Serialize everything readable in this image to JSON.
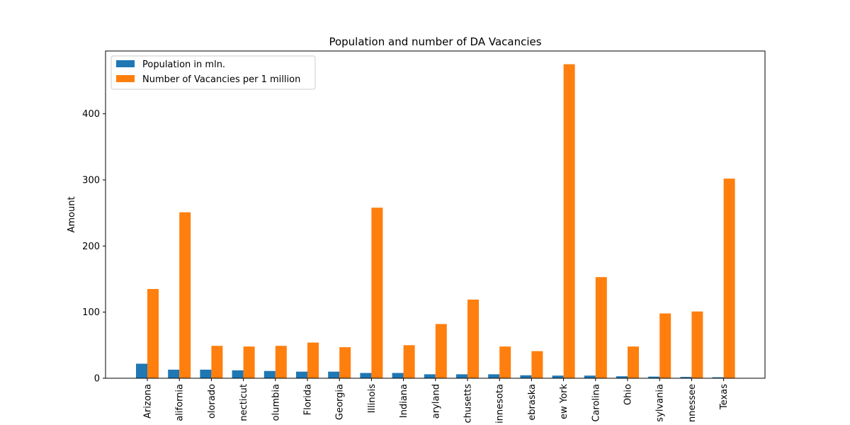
{
  "chart_data": {
    "type": "bar",
    "title": "Population and number of DA Vacancies",
    "xlabel": "",
    "ylabel": "Amount",
    "ylim": [
      0,
      495
    ],
    "yticks": [
      0,
      100,
      200,
      300,
      400
    ],
    "categories": [
      "Arizona",
      "California",
      "Colorado",
      "Connecticut",
      "Columbia",
      "Florida",
      "Georgia",
      "Illinois",
      "Indiana",
      "Maryland",
      "Massachusetts",
      "Minnesota",
      "Nebraska",
      "New York",
      "North Carolina",
      "Ohio",
      "Pennsylvania",
      "Tennessee",
      "Texas"
    ],
    "tick_labels_visible": [
      "Arizona",
      "alifornia",
      "olorado",
      "necticut",
      "olumbia",
      "Florida",
      "Georgia",
      "Illinois",
      "Indiana",
      "aryland",
      "chusetts",
      "innesota",
      "ebraska",
      "ew York",
      "Carolina",
      "Ohio",
      "sylvania",
      "nnessee",
      "Texas"
    ],
    "series": [
      {
        "name": "Population in mln.",
        "color": "#1f77b4",
        "values": [
          22.0,
          13.0,
          13.0,
          12.0,
          11.0,
          10.0,
          10.0,
          8.0,
          8.0,
          6.0,
          6.0,
          6.0,
          4.5,
          4.0,
          4.0,
          3.0,
          2.5,
          2.0,
          1.5
        ]
      },
      {
        "name": "Number of Vacancies per 1 million",
        "color": "#ff7f0e",
        "values": [
          135,
          251,
          49,
          48,
          49,
          54,
          47,
          258,
          50,
          82,
          119,
          48,
          41,
          475,
          153,
          48,
          98,
          101,
          302
        ]
      }
    ],
    "legend_position": "top-left",
    "grid": false
  }
}
